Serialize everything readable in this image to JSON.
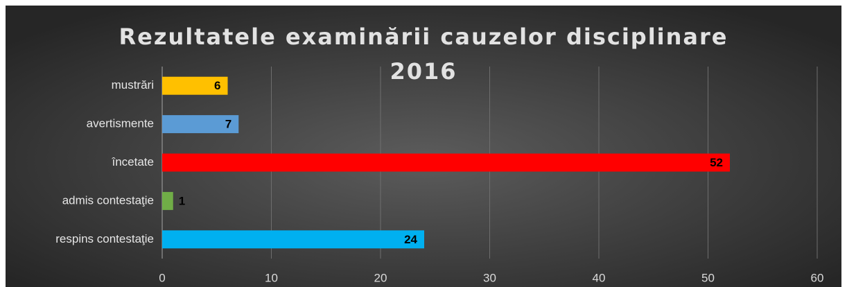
{
  "chart_data": {
    "type": "bar",
    "orientation": "horizontal",
    "title": "Rezultatele examinării cauzelor disciplinare 2016",
    "categories": [
      "mustrări",
      "avertismente",
      "încetate",
      "admis contestaţie",
      "respins contestaţie"
    ],
    "values": [
      6,
      7,
      52,
      1,
      24
    ],
    "colors": [
      "#ffc000",
      "#5b9bd5",
      "#ff0000",
      "#70ad47",
      "#00b0f0"
    ],
    "xlim": [
      0,
      60
    ],
    "xticks": [
      0,
      10,
      20,
      30,
      40,
      50,
      60
    ],
    "grid": true
  }
}
